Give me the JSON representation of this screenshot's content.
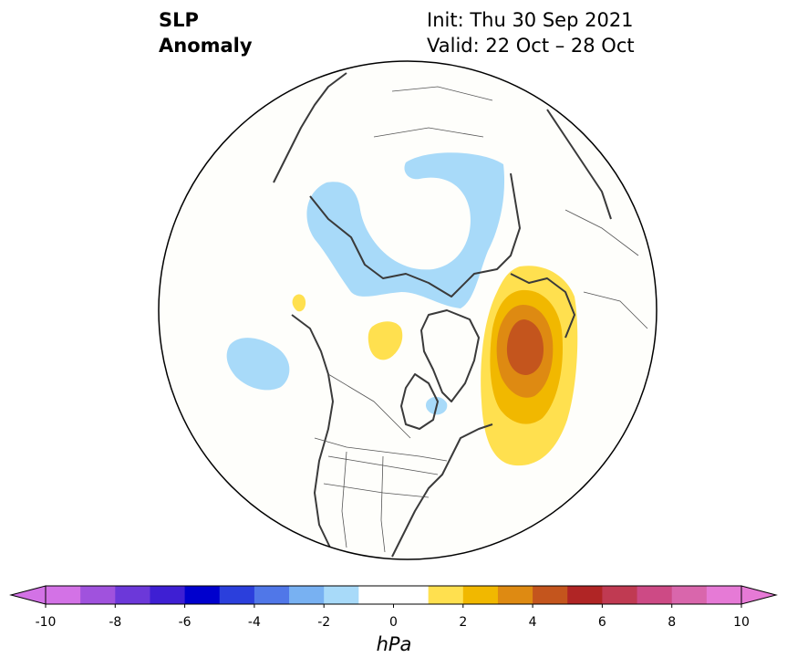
{
  "title": {
    "variable_line1": "SLP",
    "variable_line2": "Anomaly",
    "init_line": "Init: Thu 30 Sep 2021",
    "valid_line": "Valid: 22 Oct – 28 Oct"
  },
  "colorbar": {
    "unit_label": "hPa",
    "tick_labels": [
      "-10",
      "-8",
      "-6",
      "-4",
      "-2",
      "0",
      "2",
      "4",
      "6",
      "8",
      "10"
    ],
    "bins": [
      {
        "range": "-10 to -9",
        "color": "#d372e6"
      },
      {
        "range": "-9 to -8",
        "color": "#a052dd"
      },
      {
        "range": "-8 to -7",
        "color": "#6c38d9"
      },
      {
        "range": "-7 to -6",
        "color": "#3e1fd3"
      },
      {
        "range": "-6 to -5",
        "color": "#0000cd"
      },
      {
        "range": "-5 to -4",
        "color": "#2b3fdc"
      },
      {
        "range": "-4 to -3",
        "color": "#5077e8"
      },
      {
        "range": "-3 to -2",
        "color": "#78b1f2"
      },
      {
        "range": "-2 to -1",
        "color": "#a8daf9"
      },
      {
        "range": "-1 to 0",
        "color": "#ffffff"
      },
      {
        "range": "0 to 1",
        "color": "#ffffff"
      },
      {
        "range": "1 to 2",
        "color": "#ffe04f"
      },
      {
        "range": "2 to 3",
        "color": "#f1b800"
      },
      {
        "range": "3 to 4",
        "color": "#de8a12"
      },
      {
        "range": "4 to 5",
        "color": "#c4551d"
      },
      {
        "range": "5 to 6",
        "color": "#b02525"
      },
      {
        "range": "6 to 7",
        "color": "#c03a52"
      },
      {
        "range": "7 to 8",
        "color": "#cd4a85"
      },
      {
        "range": "8 to 9",
        "color": "#d966ac"
      },
      {
        "range": "9 to 10",
        "color": "#e67ad6"
      }
    ],
    "extend_low_color": "#d372e6",
    "extend_high_color": "#e67ad6"
  },
  "map": {
    "projection": "north polar stereographic",
    "background_color": "#fefefb",
    "coastline_color": "#3a3a3a",
    "anomaly_regions": [
      {
        "name": "arctic-siberia-low",
        "sign": "negative",
        "level": -1.5,
        "color": "#a8daf9"
      },
      {
        "name": "north-pacific-low",
        "sign": "negative",
        "level": -1.5,
        "color": "#a8daf9"
      },
      {
        "name": "hudson-bay-low",
        "sign": "negative",
        "level": -1.5,
        "color": "#a8daf9"
      },
      {
        "name": "north-atlantic-high",
        "sign": "positive",
        "level": 4.5,
        "color": "#c4551d"
      },
      {
        "name": "canadian-archipelago-high",
        "sign": "positive",
        "level": 1.5,
        "color": "#ffe04f"
      },
      {
        "name": "bering-high",
        "sign": "positive",
        "level": 1.5,
        "color": "#ffe04f"
      }
    ]
  }
}
